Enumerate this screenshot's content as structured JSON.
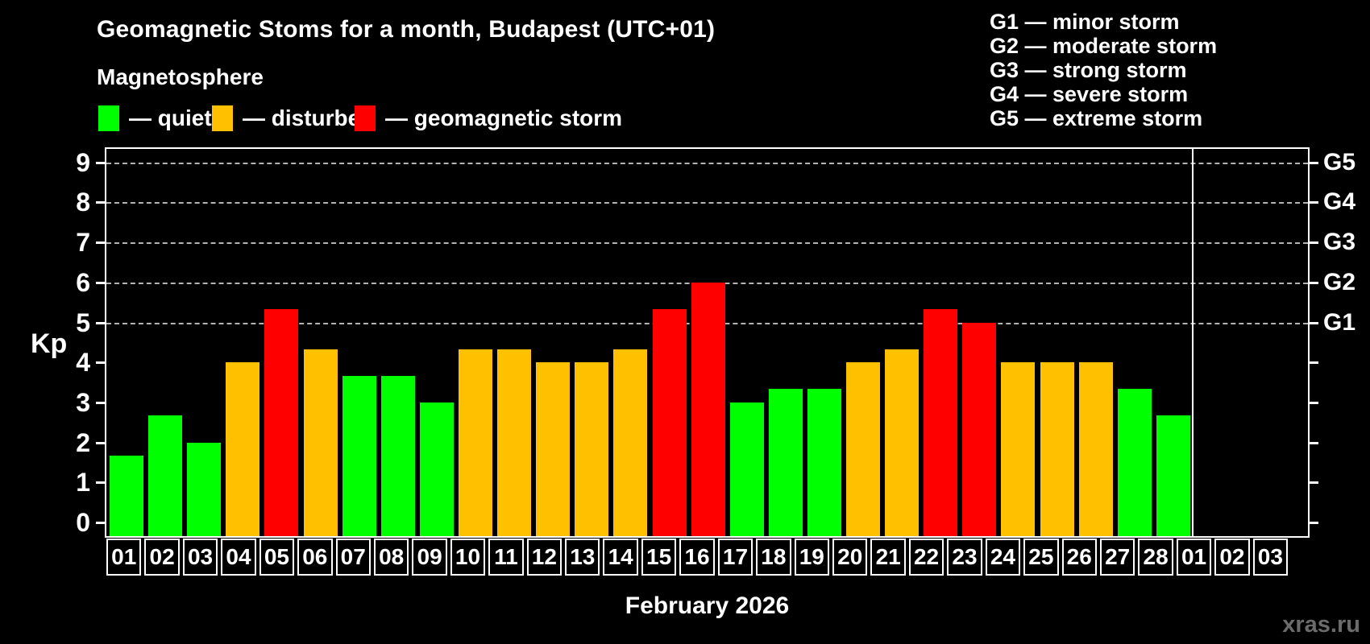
{
  "title": "Geomagnetic Stoms for a month, Budapest (UTC+01)",
  "subtitle": "Magnetosphere",
  "legend": [
    {
      "key": "quiet",
      "label": "— quiet",
      "color": "#00ff00"
    },
    {
      "key": "disturbed",
      "label": "— disturbed",
      "color": "#ffc000"
    },
    {
      "key": "storm",
      "label": "— geomagnetic storm",
      "color": "#ff0000"
    }
  ],
  "g_scale_legend": [
    "G1 — minor storm",
    "G2 — moderate storm",
    "G3 — strong storm",
    "G4 — severe storm",
    "G5 — extreme storm"
  ],
  "y_axis": {
    "label": "Kp",
    "ticks": [
      0,
      1,
      2,
      3,
      4,
      5,
      6,
      7,
      8,
      9
    ]
  },
  "x_axis": {
    "label": "February 2026"
  },
  "watermark": "xras.ru",
  "chart_data": {
    "type": "bar",
    "title": "Geomagnetic Stoms for a month, Budapest (UTC+01)",
    "xlabel": "February 2026",
    "ylabel": "Kp",
    "ylim": [
      0,
      9
    ],
    "grid": "dashed horizontal at Kp 5-9 only",
    "gridlines_at": [
      5,
      6,
      7,
      8,
      9
    ],
    "legend_position": "top-left",
    "categories": [
      "01",
      "02",
      "03",
      "04",
      "05",
      "06",
      "07",
      "08",
      "09",
      "10",
      "11",
      "12",
      "13",
      "14",
      "15",
      "16",
      "17",
      "18",
      "19",
      "20",
      "21",
      "22",
      "23",
      "24",
      "25",
      "26",
      "27",
      "28"
    ],
    "next_month_categories": [
      "01",
      "02",
      "03"
    ],
    "series": [
      {
        "name": "Kp index",
        "values": [
          1.67,
          2.67,
          2.0,
          4.0,
          5.33,
          4.33,
          3.67,
          3.67,
          3.0,
          4.33,
          4.33,
          4.0,
          4.0,
          4.33,
          5.33,
          6.0,
          3.0,
          3.33,
          3.33,
          4.0,
          4.33,
          5.33,
          5.0,
          4.0,
          4.0,
          4.0,
          3.33,
          2.67
        ],
        "statuses": [
          "quiet",
          "quiet",
          "quiet",
          "disturbed",
          "storm",
          "disturbed",
          "quiet",
          "quiet",
          "quiet",
          "disturbed",
          "disturbed",
          "disturbed",
          "disturbed",
          "disturbed",
          "storm",
          "storm",
          "quiet",
          "quiet",
          "quiet",
          "disturbed",
          "disturbed",
          "storm",
          "storm",
          "disturbed",
          "disturbed",
          "disturbed",
          "quiet",
          "quiet"
        ]
      }
    ],
    "status_colors": {
      "quiet": "#00ff00",
      "disturbed": "#ffc000",
      "storm": "#ff0000"
    },
    "right_axis_labels": [
      {
        "label": "G5",
        "kp": 9
      },
      {
        "label": "G4",
        "kp": 8
      },
      {
        "label": "G3",
        "kp": 7
      },
      {
        "label": "G2",
        "kp": 6
      },
      {
        "label": "G1",
        "kp": 5
      }
    ]
  }
}
